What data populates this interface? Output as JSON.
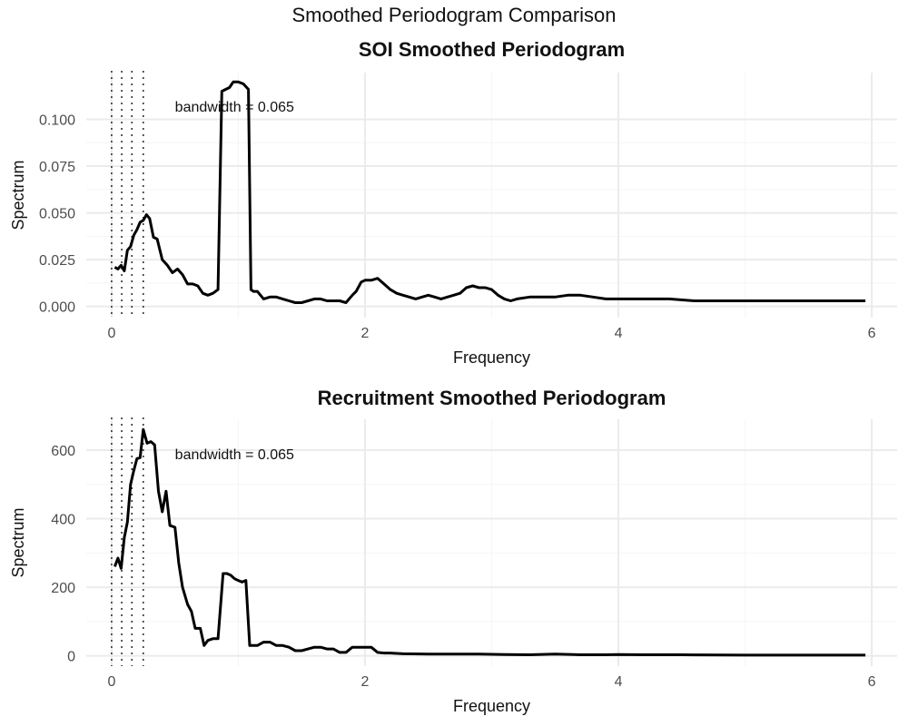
{
  "figure": {
    "title": "Smoothed Periodogram Comparison"
  },
  "chart_data": [
    {
      "type": "line",
      "title": "SOI Smoothed Periodogram",
      "xlabel": "Frequency",
      "ylabel": "Spectrum",
      "xlim": [
        -0.2,
        6.2
      ],
      "ylim": [
        -0.006,
        0.125
      ],
      "xticks": [
        0,
        2,
        4,
        6
      ],
      "xtick_labels": [
        "0",
        "2",
        "4",
        "6"
      ],
      "yticks": [
        0,
        0.025,
        0.05,
        0.075,
        0.1
      ],
      "ytick_labels": [
        "0.000",
        "0.025",
        "0.050",
        "0.075",
        "0.100"
      ],
      "annotation": {
        "text": "bandwidth = 0.065",
        "x": 0.5,
        "y": 0.107
      },
      "bandwidth_lines_x": [
        0.0,
        0.08,
        0.16,
        0.25
      ],
      "grid": true,
      "series": [
        {
          "x": [
            0.025,
            0.05,
            0.075,
            0.1,
            0.125,
            0.15,
            0.175,
            0.2,
            0.225,
            0.25,
            0.275,
            0.3,
            0.33,
            0.36,
            0.4,
            0.44,
            0.48,
            0.52,
            0.56,
            0.6,
            0.64,
            0.68,
            0.72,
            0.76,
            0.8,
            0.84,
            0.87,
            0.9,
            0.93,
            0.96,
            1.0,
            1.04,
            1.08,
            1.1,
            1.12,
            1.15,
            1.2,
            1.25,
            1.3,
            1.35,
            1.4,
            1.45,
            1.5,
            1.55,
            1.6,
            1.65,
            1.7,
            1.75,
            1.8,
            1.85,
            1.9,
            1.93,
            1.97,
            2.0,
            2.05,
            2.1,
            2.15,
            2.2,
            2.25,
            2.3,
            2.35,
            2.4,
            2.45,
            2.5,
            2.55,
            2.6,
            2.65,
            2.7,
            2.75,
            2.8,
            2.85,
            2.9,
            2.95,
            3.0,
            3.05,
            3.1,
            3.15,
            3.2,
            3.3,
            3.4,
            3.5,
            3.6,
            3.7,
            3.8,
            3.9,
            4.0,
            4.2,
            4.4,
            4.6,
            4.8,
            5.0,
            5.2,
            5.4,
            5.6,
            5.8,
            5.95
          ],
          "y": [
            0.021,
            0.02,
            0.022,
            0.019,
            0.03,
            0.032,
            0.038,
            0.041,
            0.045,
            0.046,
            0.049,
            0.047,
            0.037,
            0.036,
            0.025,
            0.022,
            0.018,
            0.02,
            0.017,
            0.012,
            0.012,
            0.011,
            0.007,
            0.006,
            0.007,
            0.009,
            0.115,
            0.116,
            0.117,
            0.12,
            0.12,
            0.119,
            0.116,
            0.009,
            0.008,
            0.008,
            0.004,
            0.005,
            0.005,
            0.004,
            0.003,
            0.002,
            0.002,
            0.003,
            0.004,
            0.004,
            0.003,
            0.003,
            0.003,
            0.002,
            0.006,
            0.008,
            0.013,
            0.014,
            0.014,
            0.015,
            0.012,
            0.009,
            0.007,
            0.006,
            0.005,
            0.004,
            0.005,
            0.006,
            0.005,
            0.004,
            0.005,
            0.006,
            0.007,
            0.01,
            0.011,
            0.01,
            0.01,
            0.009,
            0.006,
            0.004,
            0.003,
            0.004,
            0.005,
            0.005,
            0.005,
            0.006,
            0.006,
            0.005,
            0.004,
            0.004,
            0.004,
            0.004,
            0.003,
            0.003,
            0.003,
            0.003,
            0.003,
            0.003,
            0.003,
            0.003
          ]
        }
      ]
    },
    {
      "type": "line",
      "title": "Recruitment Smoothed Periodogram",
      "xlabel": "Frequency",
      "ylabel": "Spectrum",
      "xlim": [
        -0.2,
        6.2
      ],
      "ylim": [
        -30,
        690
      ],
      "xticks": [
        0,
        2,
        4,
        6
      ],
      "xtick_labels": [
        "0",
        "2",
        "4",
        "6"
      ],
      "yticks": [
        0,
        200,
        400,
        600
      ],
      "ytick_labels": [
        "0",
        "200",
        "400",
        "600"
      ],
      "annotation": {
        "text": "bandwidth = 0.065",
        "x": 0.5,
        "y": 590
      },
      "bandwidth_lines_x": [
        0.0,
        0.08,
        0.16,
        0.25
      ],
      "grid": true,
      "series": [
        {
          "x": [
            0.025,
            0.05,
            0.075,
            0.1,
            0.125,
            0.15,
            0.175,
            0.2,
            0.225,
            0.25,
            0.28,
            0.31,
            0.34,
            0.37,
            0.4,
            0.43,
            0.46,
            0.5,
            0.53,
            0.56,
            0.6,
            0.63,
            0.66,
            0.7,
            0.73,
            0.76,
            0.8,
            0.84,
            0.88,
            0.91,
            0.94,
            0.97,
            1.0,
            1.03,
            1.06,
            1.09,
            1.12,
            1.15,
            1.2,
            1.25,
            1.3,
            1.35,
            1.4,
            1.45,
            1.5,
            1.55,
            1.6,
            1.65,
            1.7,
            1.75,
            1.8,
            1.85,
            1.9,
            1.95,
            2.0,
            2.05,
            2.1,
            2.15,
            2.2,
            2.3,
            2.5,
            2.7,
            2.9,
            3.1,
            3.3,
            3.5,
            3.7,
            3.9,
            4.0,
            4.2,
            4.5,
            5.0,
            5.5,
            5.95
          ],
          "y": [
            260,
            285,
            255,
            345,
            390,
            500,
            540,
            575,
            578,
            660,
            620,
            625,
            615,
            480,
            420,
            480,
            380,
            375,
            270,
            200,
            150,
            130,
            80,
            80,
            30,
            45,
            50,
            50,
            240,
            240,
            235,
            225,
            220,
            215,
            220,
            30,
            30,
            30,
            40,
            40,
            30,
            30,
            25,
            15,
            15,
            20,
            25,
            25,
            20,
            20,
            10,
            10,
            25,
            25,
            25,
            25,
            10,
            8,
            8,
            6,
            5,
            5,
            5,
            4,
            3,
            5,
            3,
            3,
            4,
            3,
            3,
            2,
            2,
            2
          ]
        }
      ]
    }
  ]
}
